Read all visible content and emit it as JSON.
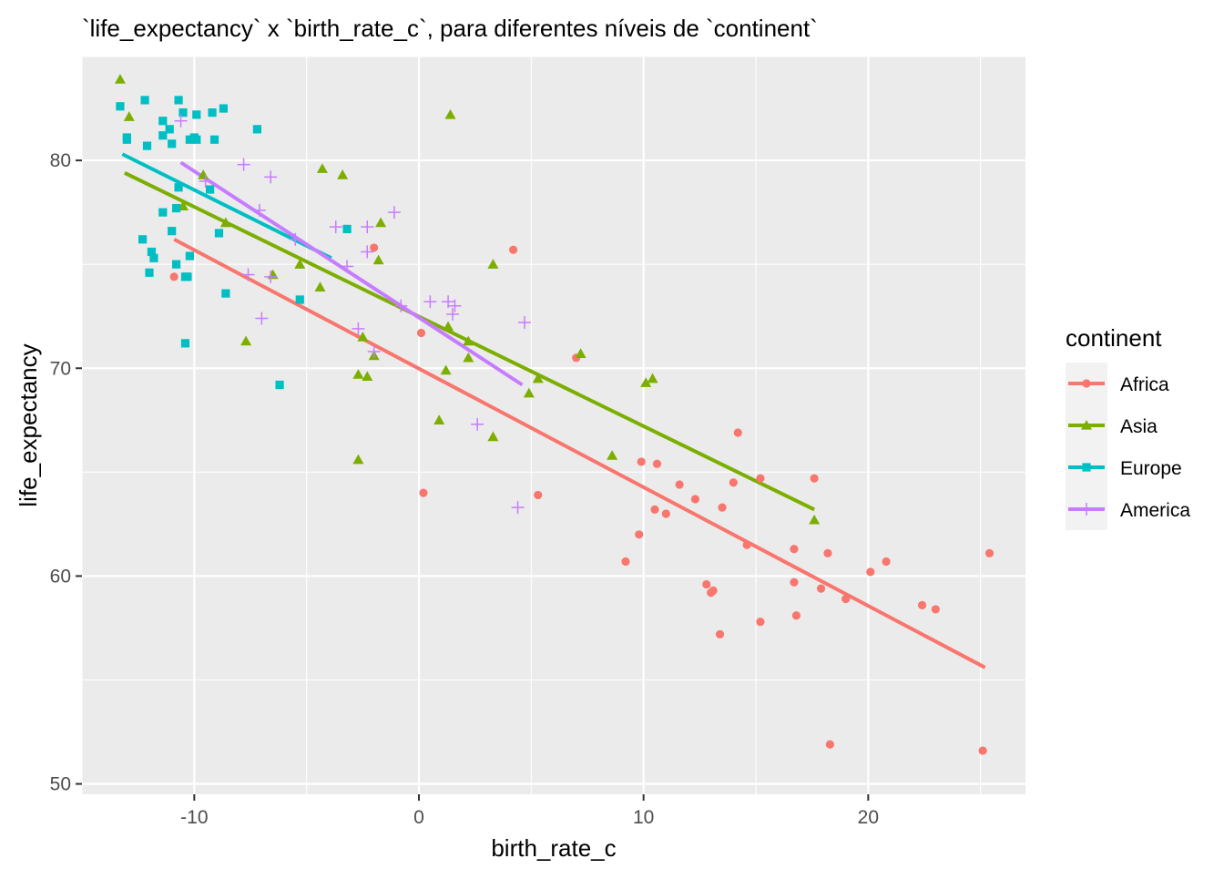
{
  "chart_data": {
    "type": "scatter",
    "title": "`life_expectancy` x `birth_rate_c`, para diferentes níveis de `continent`",
    "xlabel": "birth_rate_c",
    "ylabel": "life_expectancy",
    "xlim": [
      -15,
      27
    ],
    "ylim": [
      49.5,
      85
    ],
    "x_ticks": [
      -10,
      0,
      10,
      20
    ],
    "x_tick_labels": [
      "-10",
      "0",
      "10",
      "20"
    ],
    "y_ticks": [
      50,
      60,
      70,
      80
    ],
    "y_tick_labels": [
      "50",
      "60",
      "70",
      "80"
    ],
    "grid": true,
    "panel_background": "#ebebeb",
    "legend": {
      "title": "continent",
      "position": "right"
    },
    "series": [
      {
        "name": "Africa",
        "color": "#F8766D",
        "shape": "circle",
        "points": [
          [
            -10.9,
            74.4
          ],
          [
            -2.0,
            75.8
          ],
          [
            4.2,
            75.7
          ],
          [
            0.1,
            71.7
          ],
          [
            7.0,
            70.5
          ],
          [
            0.2,
            64.0
          ],
          [
            5.3,
            63.9
          ],
          [
            9.9,
            65.5
          ],
          [
            10.6,
            65.4
          ],
          [
            11.6,
            64.4
          ],
          [
            12.3,
            63.7
          ],
          [
            10.5,
            63.2
          ],
          [
            11.0,
            63.0
          ],
          [
            13.5,
            63.3
          ],
          [
            14.0,
            64.5
          ],
          [
            14.2,
            66.9
          ],
          [
            15.2,
            64.7
          ],
          [
            17.6,
            64.7
          ],
          [
            9.8,
            62.0
          ],
          [
            9.2,
            60.7
          ],
          [
            14.6,
            61.5
          ],
          [
            16.7,
            61.3
          ],
          [
            18.2,
            61.1
          ],
          [
            12.8,
            59.6
          ],
          [
            13.1,
            59.3
          ],
          [
            13.0,
            59.2
          ],
          [
            16.7,
            59.7
          ],
          [
            17.9,
            59.4
          ],
          [
            20.1,
            60.2
          ],
          [
            20.8,
            60.7
          ],
          [
            19.0,
            58.9
          ],
          [
            22.4,
            58.6
          ],
          [
            23.0,
            58.4
          ],
          [
            15.2,
            57.8
          ],
          [
            16.8,
            58.1
          ],
          [
            13.4,
            57.2
          ],
          [
            25.4,
            61.1
          ],
          [
            18.3,
            51.9
          ],
          [
            25.1,
            51.6
          ]
        ],
        "trend": [
          [
            -10.9,
            76.2
          ],
          [
            25.2,
            55.6
          ]
        ]
      },
      {
        "name": "Asia",
        "color": "#7CAE00",
        "shape": "triangle",
        "points": [
          [
            -13.3,
            83.9
          ],
          [
            -12.9,
            82.1
          ],
          [
            1.4,
            82.2
          ],
          [
            -9.6,
            79.3
          ],
          [
            -4.3,
            79.6
          ],
          [
            -3.4,
            79.3
          ],
          [
            -10.5,
            77.8
          ],
          [
            -8.6,
            77.0
          ],
          [
            -1.7,
            77.0
          ],
          [
            -5.3,
            75.0
          ],
          [
            -1.8,
            75.2
          ],
          [
            3.3,
            75.0
          ],
          [
            -6.5,
            74.5
          ],
          [
            -4.4,
            73.9
          ],
          [
            1.3,
            72.0
          ],
          [
            -2.5,
            71.5
          ],
          [
            2.2,
            71.3
          ],
          [
            -7.7,
            71.3
          ],
          [
            -2.0,
            70.6
          ],
          [
            2.2,
            70.5
          ],
          [
            7.2,
            70.7
          ],
          [
            1.2,
            69.9
          ],
          [
            -2.7,
            69.7
          ],
          [
            -2.3,
            69.6
          ],
          [
            4.9,
            68.8
          ],
          [
            5.3,
            69.5
          ],
          [
            10.1,
            69.3
          ],
          [
            10.4,
            69.5
          ],
          [
            0.9,
            67.5
          ],
          [
            3.3,
            66.7
          ],
          [
            -2.7,
            65.6
          ],
          [
            8.6,
            65.8
          ],
          [
            17.6,
            62.7
          ]
        ],
        "trend": [
          [
            -13.1,
            79.4
          ],
          [
            17.6,
            63.2
          ]
        ]
      },
      {
        "name": "Europe",
        "color": "#00BFC4",
        "shape": "square",
        "points": [
          [
            -13.3,
            82.6
          ],
          [
            -12.2,
            82.9
          ],
          [
            -10.7,
            82.9
          ],
          [
            -10.5,
            82.3
          ],
          [
            -9.9,
            82.2
          ],
          [
            -9.2,
            82.3
          ],
          [
            -8.7,
            82.5
          ],
          [
            -11.4,
            81.9
          ],
          [
            -11.1,
            81.5
          ],
          [
            -13.0,
            81.1
          ],
          [
            -13.0,
            81.0
          ],
          [
            -11.4,
            81.2
          ],
          [
            -12.1,
            80.7
          ],
          [
            -11.0,
            80.8
          ],
          [
            -10.2,
            81.0
          ],
          [
            -10.0,
            81.1
          ],
          [
            -9.9,
            81.0
          ],
          [
            -9.1,
            81.0
          ],
          [
            -7.2,
            81.5
          ],
          [
            -10.7,
            78.7
          ],
          [
            -10.8,
            77.7
          ],
          [
            -11.4,
            77.5
          ],
          [
            -9.3,
            78.6
          ],
          [
            -12.3,
            76.2
          ],
          [
            -11.0,
            76.6
          ],
          [
            -8.9,
            76.5
          ],
          [
            -3.2,
            76.7
          ],
          [
            -11.9,
            75.6
          ],
          [
            -11.8,
            75.3
          ],
          [
            -10.2,
            75.4
          ],
          [
            -10.8,
            75.0
          ],
          [
            -12.0,
            74.6
          ],
          [
            -10.4,
            74.4
          ],
          [
            -10.3,
            74.4
          ],
          [
            -8.6,
            73.6
          ],
          [
            -5.3,
            73.3
          ],
          [
            -10.4,
            71.2
          ],
          [
            -6.2,
            69.2
          ]
        ],
        "trend": [
          [
            -13.2,
            80.3
          ],
          [
            -3.9,
            75.3
          ]
        ]
      },
      {
        "name": "America",
        "color": "#C77CFF",
        "shape": "plus",
        "points": [
          [
            -10.6,
            81.9
          ],
          [
            -7.8,
            79.8
          ],
          [
            -6.6,
            79.2
          ],
          [
            -9.5,
            79.0
          ],
          [
            -7.1,
            77.6
          ],
          [
            -1.1,
            77.5
          ],
          [
            -3.7,
            76.8
          ],
          [
            -2.3,
            76.8
          ],
          [
            -5.5,
            76.2
          ],
          [
            -2.3,
            75.6
          ],
          [
            -3.2,
            74.9
          ],
          [
            -7.6,
            74.5
          ],
          [
            -6.6,
            74.4
          ],
          [
            -0.8,
            73.0
          ],
          [
            0.5,
            73.2
          ],
          [
            1.3,
            73.2
          ],
          [
            1.6,
            73.0
          ],
          [
            1.5,
            72.6
          ],
          [
            -7.0,
            72.4
          ],
          [
            4.7,
            72.2
          ],
          [
            -2.7,
            71.9
          ],
          [
            -2.0,
            70.8
          ],
          [
            2.6,
            67.3
          ],
          [
            4.4,
            63.3
          ]
        ],
        "trend": [
          [
            -10.6,
            79.9
          ],
          [
            4.6,
            69.2
          ]
        ]
      }
    ]
  }
}
